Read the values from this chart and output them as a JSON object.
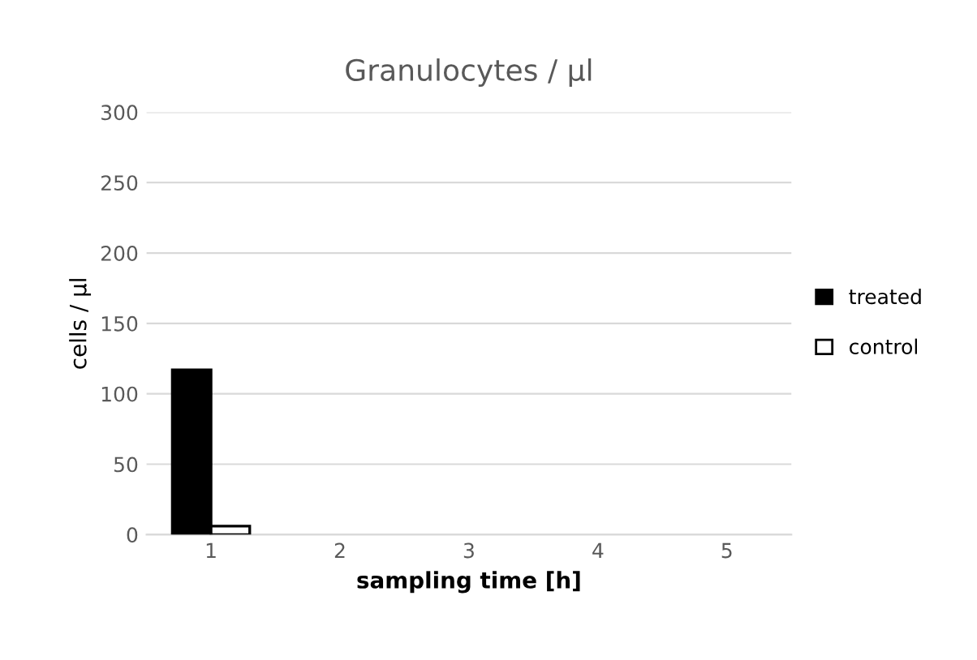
{
  "chart_data": {
    "type": "bar",
    "title": "Granulocytes / µl",
    "xlabel": "sampling time [h]",
    "ylabel": "cells / µl",
    "categories": [
      "1",
      "2",
      "3",
      "4",
      "5"
    ],
    "series": [
      {
        "name": "treated",
        "color": "#000000",
        "values": [
          117,
          null,
          null,
          null,
          null
        ]
      },
      {
        "name": "control",
        "color": "#ffffff",
        "values": [
          6,
          null,
          null,
          null,
          null
        ]
      }
    ],
    "ylim": [
      0,
      300
    ],
    "yticks": [
      0,
      50,
      100,
      150,
      200,
      250,
      300
    ],
    "grid": "y",
    "legend": "right"
  }
}
